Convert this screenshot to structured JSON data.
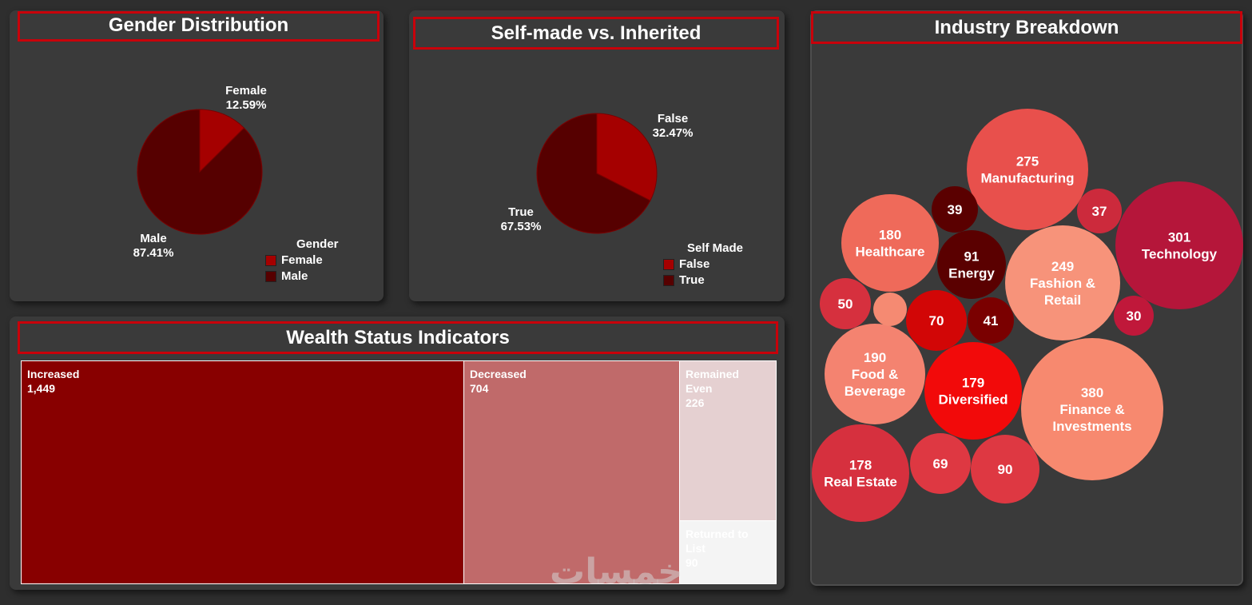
{
  "colors": {
    "background": "#2e2e2e",
    "panel": "#3a3a3a",
    "title_border": "#c8000a",
    "female": "#a50000",
    "male": "#560000",
    "self_false": "#a50000",
    "self_true": "#560000"
  },
  "gender": {
    "title": "Gender Distribution",
    "legend_title": "Gender",
    "legend": [
      "Female",
      "Male"
    ],
    "female_name": "Female",
    "female_pct": "12.59%",
    "male_name": "Male",
    "male_pct": "87.41%"
  },
  "selfmade": {
    "title": "Self-made vs. Inherited",
    "legend_title": "Self Made",
    "legend": [
      "False",
      "True"
    ],
    "false_name": "False",
    "false_pct": "32.47%",
    "true_name": "True",
    "true_pct": "67.53%"
  },
  "wealth": {
    "title": "Wealth Status Indicators",
    "items": [
      {
        "name": "Increased",
        "value": "1,449"
      },
      {
        "name": "Decreased",
        "value": "704"
      },
      {
        "name": "Remained Even",
        "value": "226"
      },
      {
        "name": "Returned to List",
        "value": "90"
      }
    ]
  },
  "industry": {
    "title": "Industry Breakdown"
  },
  "watermark": "خمسات",
  "chart_data": [
    {
      "type": "pie",
      "title": "Gender Distribution",
      "categories": [
        "Female",
        "Male"
      ],
      "values": [
        12.59,
        87.41
      ],
      "legend": "right-bottom"
    },
    {
      "type": "pie",
      "title": "Self-made vs. Inherited",
      "categories": [
        "False",
        "True"
      ],
      "values": [
        32.47,
        67.53
      ],
      "legend": "right-bottom"
    },
    {
      "type": "treemap",
      "title": "Wealth Status Indicators",
      "categories": [
        "Increased",
        "Decreased",
        "Remained Even",
        "Returned to List"
      ],
      "values": [
        1449,
        704,
        226,
        90
      ]
    },
    {
      "type": "bubble",
      "title": "Industry Breakdown",
      "bubbles": [
        {
          "value": 275,
          "label": "Manufacturing",
          "color": "#e8504c"
        },
        {
          "value": 301,
          "label": "Technology",
          "color": "#b5163a"
        },
        {
          "value": 380,
          "label": "Finance & Investments",
          "color": "#f7896f"
        },
        {
          "value": 249,
          "label": "Fashion & Retail",
          "color": "#f7937a"
        },
        {
          "value": 190,
          "label": "Food & Beverage",
          "color": "#f48370"
        },
        {
          "value": 180,
          "label": "Healthcare",
          "color": "#ef6a5a"
        },
        {
          "value": 179,
          "label": "Diversified",
          "color": "#f20a0a"
        },
        {
          "value": 178,
          "label": "Real Estate",
          "color": "#d6303e"
        },
        {
          "value": 91,
          "label": "Energy",
          "color": "#5a0000"
        },
        {
          "value": 90,
          "label": "",
          "color": "#de3842"
        },
        {
          "value": 70,
          "label": "",
          "color": "#d20606"
        },
        {
          "value": 69,
          "label": "",
          "color": "#de3842"
        },
        {
          "value": 50,
          "label": "",
          "color": "#d6303e"
        },
        {
          "value": 41,
          "label": "",
          "color": "#7a0000"
        },
        {
          "value": 39,
          "label": "",
          "color": "#5a0000"
        },
        {
          "value": 37,
          "label": "",
          "color": "#cc2a3c"
        },
        {
          "value": 30,
          "label": "",
          "color": "#c0183a"
        },
        {
          "value": null,
          "label": "",
          "color": "#f58a72"
        }
      ]
    }
  ]
}
